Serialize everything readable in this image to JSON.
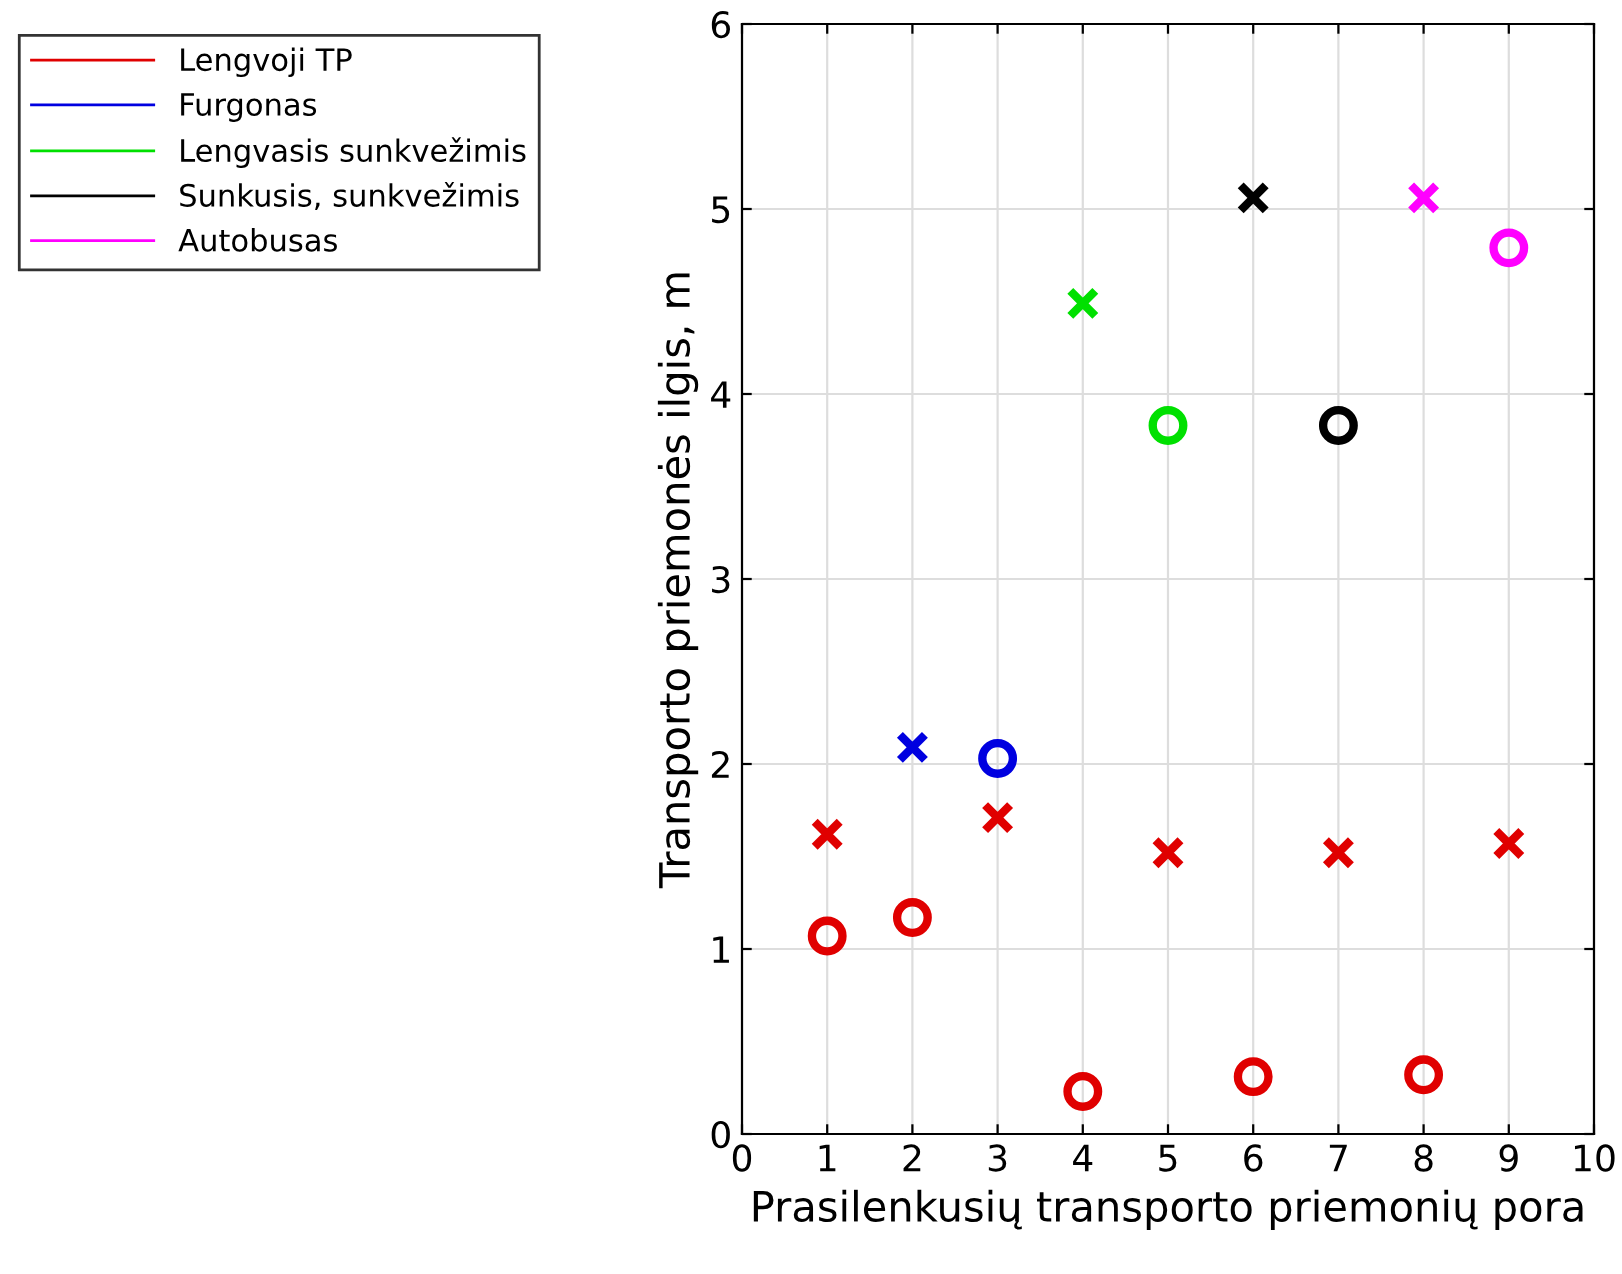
{
  "chart_data": {
    "type": "scatter",
    "xlabel": "Prasilenkusių transporto priemonių pora",
    "ylabel": "Transporto priemonės ilgis, m",
    "xlim": [
      0,
      10
    ],
    "xticks": [
      0,
      1,
      2,
      3,
      4,
      5,
      6,
      7,
      8,
      9,
      10
    ],
    "ylim": [
      0,
      6
    ],
    "yticks": [
      0,
      1,
      2,
      3,
      4,
      5,
      6
    ],
    "grid": true,
    "legend": "top left",
    "series": [
      {
        "name": "Lengvoji TP",
        "color": "#e00000",
        "marker": "circle",
        "x": [
          1,
          2,
          4,
          6,
          8
        ],
        "values": [
          1.07,
          1.17,
          0.23,
          0.31,
          0.32
        ]
      },
      {
        "color": "#e00000",
        "marker": "cross",
        "x": [
          1,
          3,
          5,
          7,
          9
        ],
        "values": [
          1.62,
          1.71,
          1.52,
          1.52,
          1.57
        ]
      },
      {
        "name": "Furgonas",
        "color": "#0000e0",
        "marker": "circle",
        "x": [
          3
        ],
        "values": [
          2.03
        ]
      },
      {
        "color": "#0000e0",
        "marker": "cross",
        "x": [
          2
        ],
        "values": [
          2.09
        ]
      },
      {
        "name": "Lengvasis sunkvežimis",
        "color": "#00e000",
        "marker": "circle",
        "x": [
          5
        ],
        "values": [
          3.83
        ]
      },
      {
        "color": "#00e000",
        "marker": "cross",
        "x": [
          4
        ],
        "values": [
          4.49
        ]
      },
      {
        "name": "Sunkusis, sunkvežimis",
        "color": "#000000",
        "marker": "circle",
        "x": [
          7
        ],
        "values": [
          3.83
        ]
      },
      {
        "color": "#000000",
        "marker": "cross",
        "x": [
          6
        ],
        "values": [
          5.06
        ]
      },
      {
        "name": "Autobusas",
        "color": "#ff00ff",
        "marker": "circle",
        "x": [
          9
        ],
        "values": [
          4.79
        ]
      },
      {
        "color": "#ff00ff",
        "marker": "cross",
        "x": [
          8
        ],
        "values": [
          5.06
        ]
      }
    ]
  }
}
